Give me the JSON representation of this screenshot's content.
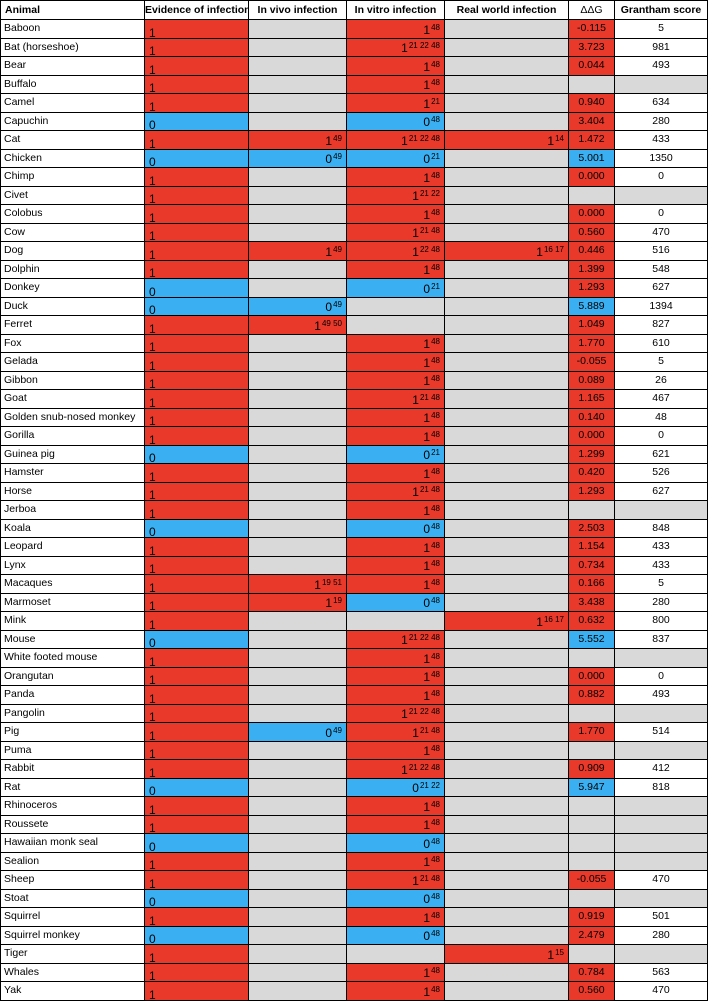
{
  "headers": [
    "Animal",
    "Evidence of infection",
    "In vivo infection",
    "In vitro infection",
    "Real world infection",
    "ΔΔG",
    "Grantham score"
  ],
  "rows": [
    {
      "animal": "Baboon",
      "ev": "1",
      "vivo": null,
      "vitro": {
        "v": "1",
        "r": "48",
        "c": "red"
      },
      "real": null,
      "ddg": "-0.115",
      "gs": "5"
    },
    {
      "animal": "Bat (horseshoe)",
      "ev": "1",
      "vivo": null,
      "vitro": {
        "v": "1",
        "r": "21 22 48",
        "c": "red"
      },
      "real": null,
      "ddg": "3.723",
      "gs": "981"
    },
    {
      "animal": "Bear",
      "ev": "1",
      "vivo": null,
      "vitro": {
        "v": "1",
        "r": "48",
        "c": "red"
      },
      "real": null,
      "ddg": "0.044",
      "gs": "493"
    },
    {
      "animal": "Buffalo",
      "ev": "1",
      "vivo": null,
      "vitro": {
        "v": "1",
        "r": "48",
        "c": "red"
      },
      "real": null,
      "ddg": "",
      "gs": ""
    },
    {
      "animal": "Camel",
      "ev": "1",
      "vivo": null,
      "vitro": {
        "v": "1",
        "r": "21",
        "c": "red"
      },
      "real": null,
      "ddg": "0.940",
      "gs": "634"
    },
    {
      "animal": "Capuchin",
      "ev": "0",
      "vivo": null,
      "vitro": {
        "v": "0",
        "r": "48",
        "c": "blue"
      },
      "real": null,
      "ddg": "3.404",
      "gs": "280"
    },
    {
      "animal": "Cat",
      "ev": "1",
      "vivo": {
        "v": "1",
        "r": "49",
        "c": "red"
      },
      "vitro": {
        "v": "1",
        "r": "21 22 48",
        "c": "red"
      },
      "real": {
        "v": "1",
        "r": "14",
        "c": "red"
      },
      "ddg": "1.472",
      "gs": "433"
    },
    {
      "animal": "Chicken",
      "ev": "0",
      "vivo": {
        "v": "0",
        "r": "49",
        "c": "blue"
      },
      "vitro": {
        "v": "0",
        "r": "21",
        "c": "blue"
      },
      "real": null,
      "ddg": "5.001",
      "gs": "1350"
    },
    {
      "animal": "Chimp",
      "ev": "1",
      "vivo": null,
      "vitro": {
        "v": "1",
        "r": "48",
        "c": "red"
      },
      "real": null,
      "ddg": "0.000",
      "gs": "0"
    },
    {
      "animal": "Civet",
      "ev": "1",
      "vivo": null,
      "vitro": {
        "v": "1",
        "r": "21 22",
        "c": "red"
      },
      "real": null,
      "ddg": "",
      "gs": ""
    },
    {
      "animal": "Colobus",
      "ev": "1",
      "vivo": null,
      "vitro": {
        "v": "1",
        "r": "48",
        "c": "red"
      },
      "real": null,
      "ddg": "0.000",
      "gs": "0"
    },
    {
      "animal": "Cow",
      "ev": "1",
      "vivo": null,
      "vitro": {
        "v": "1",
        "r": "21 48",
        "c": "red"
      },
      "real": null,
      "ddg": "0.560",
      "gs": "470"
    },
    {
      "animal": "Dog",
      "ev": "1",
      "vivo": {
        "v": "1",
        "r": "49",
        "c": "red"
      },
      "vitro": {
        "v": "1",
        "r": "22 48",
        "c": "red"
      },
      "real": {
        "v": "1",
        "r": "16 17",
        "c": "red"
      },
      "ddg": "0.446",
      "gs": "516"
    },
    {
      "animal": "Dolphin",
      "ev": "1",
      "vivo": null,
      "vitro": {
        "v": "1",
        "r": "48",
        "c": "red"
      },
      "real": null,
      "ddg": "1.399",
      "gs": "548"
    },
    {
      "animal": "Donkey",
      "ev": "0",
      "vivo": null,
      "vitro": {
        "v": "0",
        "r": "21",
        "c": "blue"
      },
      "real": null,
      "ddg": "1.293",
      "gs": "627"
    },
    {
      "animal": "Duck",
      "ev": "0",
      "vivo": {
        "v": "0",
        "r": "49",
        "c": "blue"
      },
      "vitro": null,
      "real": null,
      "ddg": "5.889",
      "gs": "1394"
    },
    {
      "animal": "Ferret",
      "ev": "1",
      "vivo": {
        "v": "1",
        "r": "49 50",
        "c": "red"
      },
      "vitro": null,
      "real": null,
      "ddg": "1.049",
      "gs": "827"
    },
    {
      "animal": "Fox",
      "ev": "1",
      "vivo": null,
      "vitro": {
        "v": "1",
        "r": "48",
        "c": "red"
      },
      "real": null,
      "ddg": "1.770",
      "gs": "610"
    },
    {
      "animal": "Gelada",
      "ev": "1",
      "vivo": null,
      "vitro": {
        "v": "1",
        "r": "48",
        "c": "red"
      },
      "real": null,
      "ddg": "-0.055",
      "gs": "5"
    },
    {
      "animal": "Gibbon",
      "ev": "1",
      "vivo": null,
      "vitro": {
        "v": "1",
        "r": "48",
        "c": "red"
      },
      "real": null,
      "ddg": "0.089",
      "gs": "26"
    },
    {
      "animal": "Goat",
      "ev": "1",
      "vivo": null,
      "vitro": {
        "v": "1",
        "r": "21 48",
        "c": "red"
      },
      "real": null,
      "ddg": "1.165",
      "gs": "467"
    },
    {
      "animal": "Golden snub-nosed monkey",
      "ev": "1",
      "vivo": null,
      "vitro": {
        "v": "1",
        "r": "48",
        "c": "red"
      },
      "real": null,
      "ddg": "0.140",
      "gs": "48"
    },
    {
      "animal": "Gorilla",
      "ev": "1",
      "vivo": null,
      "vitro": {
        "v": "1",
        "r": "48",
        "c": "red"
      },
      "real": null,
      "ddg": "0.000",
      "gs": "0"
    },
    {
      "animal": "Guinea pig",
      "ev": "0",
      "vivo": null,
      "vitro": {
        "v": "0",
        "r": "21",
        "c": "blue"
      },
      "real": null,
      "ddg": "1.299",
      "gs": "621"
    },
    {
      "animal": "Hamster",
      "ev": "1",
      "vivo": null,
      "vitro": {
        "v": "1",
        "r": "48",
        "c": "red"
      },
      "real": null,
      "ddg": "0.420",
      "gs": "526"
    },
    {
      "animal": "Horse",
      "ev": "1",
      "vivo": null,
      "vitro": {
        "v": "1",
        "r": "21 48",
        "c": "red"
      },
      "real": null,
      "ddg": "1.293",
      "gs": "627"
    },
    {
      "animal": "Jerboa",
      "ev": "1",
      "vivo": null,
      "vitro": {
        "v": "1",
        "r": "48",
        "c": "red"
      },
      "real": null,
      "ddg": "",
      "gs": ""
    },
    {
      "animal": "Koala",
      "ev": "0",
      "vivo": null,
      "vitro": {
        "v": "0",
        "r": "48",
        "c": "blue"
      },
      "real": null,
      "ddg": "2.503",
      "gs": "848"
    },
    {
      "animal": "Leopard",
      "ev": "1",
      "vivo": null,
      "vitro": {
        "v": "1",
        "r": "48",
        "c": "red"
      },
      "real": null,
      "ddg": "1.154",
      "gs": "433"
    },
    {
      "animal": "Lynx",
      "ev": "1",
      "vivo": null,
      "vitro": {
        "v": "1",
        "r": "48",
        "c": "red"
      },
      "real": null,
      "ddg": "0.734",
      "gs": "433"
    },
    {
      "animal": "Macaques",
      "ev": "1",
      "vivo": {
        "v": "1",
        "r": "19 51",
        "c": "red"
      },
      "vitro": {
        "v": "1",
        "r": "48",
        "c": "red"
      },
      "real": null,
      "ddg": "0.166",
      "gs": "5"
    },
    {
      "animal": "Marmoset",
      "ev": "1",
      "vivo": {
        "v": "1",
        "r": "19",
        "c": "red"
      },
      "vitro": {
        "v": "0",
        "r": "48",
        "c": "blue"
      },
      "real": null,
      "ddg": "3.438",
      "gs": "280"
    },
    {
      "animal": "Mink",
      "ev": "1",
      "vivo": null,
      "vitro": null,
      "real": {
        "v": "1",
        "r": "16 17",
        "c": "red"
      },
      "ddg": "0.632",
      "gs": "800"
    },
    {
      "animal": "Mouse",
      "ev": "0",
      "vivo": null,
      "vitro": {
        "v": "1",
        "r": "21 22 48",
        "c": "red"
      },
      "real": null,
      "ddg": "5.552",
      "gs": "837"
    },
    {
      "animal": "White footed mouse",
      "ev": "1",
      "vivo": null,
      "vitro": {
        "v": "1",
        "r": "48",
        "c": "red"
      },
      "real": null,
      "ddg": "",
      "gs": ""
    },
    {
      "animal": "Orangutan",
      "ev": "1",
      "vivo": null,
      "vitro": {
        "v": "1",
        "r": "48",
        "c": "red"
      },
      "real": null,
      "ddg": "0.000",
      "gs": "0"
    },
    {
      "animal": "Panda",
      "ev": "1",
      "vivo": null,
      "vitro": {
        "v": "1",
        "r": "48",
        "c": "red"
      },
      "real": null,
      "ddg": "0.882",
      "gs": "493"
    },
    {
      "animal": "Pangolin",
      "ev": "1",
      "vivo": null,
      "vitro": {
        "v": "1",
        "r": "21 22 48",
        "c": "red"
      },
      "real": null,
      "ddg": "",
      "gs": ""
    },
    {
      "animal": "Pig",
      "ev": "1",
      "vivo": {
        "v": "0",
        "r": "49",
        "c": "blue"
      },
      "vitro": {
        "v": "1",
        "r": "21 48",
        "c": "red"
      },
      "real": null,
      "ddg": "1.770",
      "gs": "514"
    },
    {
      "animal": "Puma",
      "ev": "1",
      "vivo": null,
      "vitro": {
        "v": "1",
        "r": "48",
        "c": "red"
      },
      "real": null,
      "ddg": "",
      "gs": ""
    },
    {
      "animal": "Rabbit",
      "ev": "1",
      "vivo": null,
      "vitro": {
        "v": "1",
        "r": "21 22 48",
        "c": "red"
      },
      "real": null,
      "ddg": "0.909",
      "gs": "412"
    },
    {
      "animal": "Rat",
      "ev": "0",
      "vivo": null,
      "vitro": {
        "v": "0",
        "r": "21 22",
        "c": "blue"
      },
      "real": null,
      "ddg": "5.947",
      "gs": "818"
    },
    {
      "animal": "Rhinoceros",
      "ev": "1",
      "vivo": null,
      "vitro": {
        "v": "1",
        "r": "48",
        "c": "red"
      },
      "real": null,
      "ddg": "",
      "gs": ""
    },
    {
      "animal": "Roussete",
      "ev": "1",
      "vivo": null,
      "vitro": {
        "v": "1",
        "r": "48",
        "c": "red"
      },
      "real": null,
      "ddg": "",
      "gs": ""
    },
    {
      "animal": "Hawaiian monk seal",
      "ev": "0",
      "vivo": null,
      "vitro": {
        "v": "0",
        "r": "48",
        "c": "blue"
      },
      "real": null,
      "ddg": "",
      "gs": ""
    },
    {
      "animal": "Sealion",
      "ev": "1",
      "vivo": null,
      "vitro": {
        "v": "1",
        "r": "48",
        "c": "red"
      },
      "real": null,
      "ddg": "",
      "gs": ""
    },
    {
      "animal": "Sheep",
      "ev": "1",
      "vivo": null,
      "vitro": {
        "v": "1",
        "r": "21 48",
        "c": "red"
      },
      "real": null,
      "ddg": "-0.055",
      "gs": "470"
    },
    {
      "animal": "Stoat",
      "ev": "0",
      "vivo": null,
      "vitro": {
        "v": "0",
        "r": "48",
        "c": "blue"
      },
      "real": null,
      "ddg": "",
      "gs": ""
    },
    {
      "animal": "Squirrel",
      "ev": "1",
      "vivo": null,
      "vitro": {
        "v": "1",
        "r": "48",
        "c": "red"
      },
      "real": null,
      "ddg": "0.919",
      "gs": "501"
    },
    {
      "animal": "Squirrel monkey",
      "ev": "0",
      "vivo": null,
      "vitro": {
        "v": "0",
        "r": "48",
        "c": "blue"
      },
      "real": null,
      "ddg": "2.479",
      "gs": "280"
    },
    {
      "animal": "Tiger",
      "ev": "1",
      "vivo": null,
      "vitro": null,
      "real": {
        "v": "1",
        "r": "15",
        "c": "red"
      },
      "ddg": "",
      "gs": ""
    },
    {
      "animal": "Whales",
      "ev": "1",
      "vivo": null,
      "vitro": {
        "v": "1",
        "r": "48",
        "c": "red"
      },
      "real": null,
      "ddg": "0.784",
      "gs": "563"
    },
    {
      "animal": "Yak",
      "ev": "1",
      "vivo": null,
      "vitro": {
        "v": "1",
        "r": "48",
        "c": "red"
      },
      "real": null,
      "ddg": "0.560",
      "gs": "470"
    }
  ],
  "colors": {
    "red": "#e8392a",
    "blue": "#3ab0f2",
    "grey": "#d9d9d9"
  }
}
